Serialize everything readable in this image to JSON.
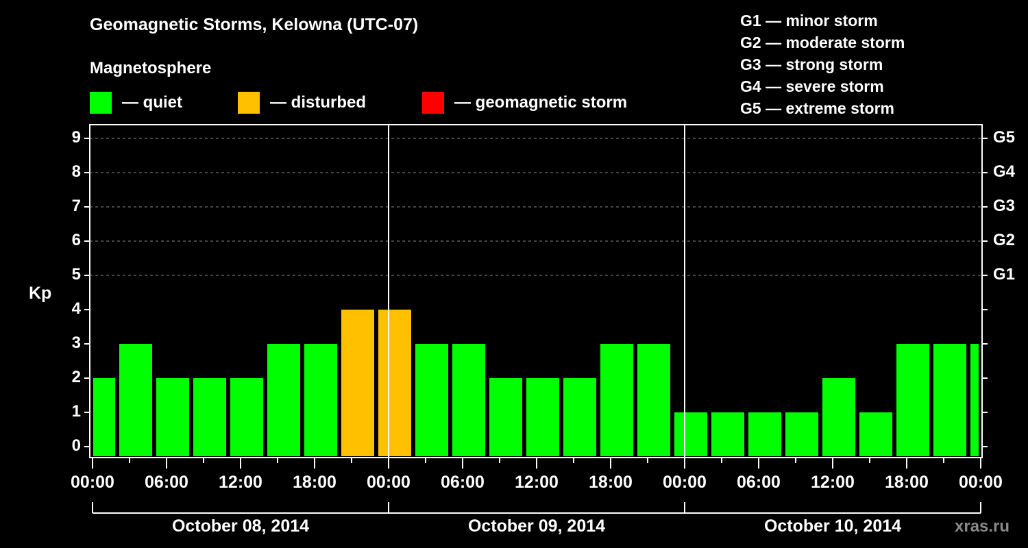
{
  "chart_data": {
    "type": "bar",
    "title": "Geomagnetic Storms, Kelowna (UTC-07)",
    "subtitle": "Magnetosphere",
    "ylabel": "Kp",
    "ylim": [
      0,
      9
    ],
    "yticks": [
      "0",
      "1",
      "2",
      "3",
      "4",
      "5",
      "6",
      "7",
      "8",
      "9"
    ],
    "right_ticks": [
      {
        "kp": 5,
        "label": "G1"
      },
      {
        "kp": 6,
        "label": "G2"
      },
      {
        "kp": 7,
        "label": "G3"
      },
      {
        "kp": 8,
        "label": "G4"
      },
      {
        "kp": 9,
        "label": "G5"
      }
    ],
    "xticks": [
      "00:00",
      "06:00",
      "12:00",
      "18:00",
      "00:00",
      "06:00",
      "12:00",
      "18:00",
      "00:00",
      "06:00",
      "12:00",
      "18:00",
      "00:00"
    ],
    "dates": [
      "October 08, 2014",
      "October 09, 2014",
      "October 10, 2014"
    ],
    "grid": "dashed horizontal lines at Kp 5-9",
    "interval_hours": 3,
    "values": [
      2,
      3,
      2,
      2,
      2,
      3,
      3,
      4,
      4,
      3,
      3,
      2,
      2,
      2,
      3,
      3,
      1,
      1,
      1,
      1,
      2,
      1,
      3,
      3,
      3
    ],
    "status": [
      "quiet",
      "quiet",
      "quiet",
      "quiet",
      "quiet",
      "quiet",
      "quiet",
      "disturbed",
      "disturbed",
      "quiet",
      "quiet",
      "quiet",
      "quiet",
      "quiet",
      "quiet",
      "quiet",
      "quiet",
      "quiet",
      "quiet",
      "quiet",
      "quiet",
      "quiet",
      "quiet",
      "quiet",
      "quiet"
    ]
  },
  "legend": {
    "items": [
      {
        "label": "— quiet",
        "color": "#00ff00"
      },
      {
        "label": "— disturbed",
        "color": "#ffc000"
      },
      {
        "label": "— geomagnetic storm",
        "color": "#ff0000"
      }
    ]
  },
  "g_scale": [
    "G1 — minor storm",
    "G2 — moderate storm",
    "G3 — strong storm",
    "G4 — severe storm",
    "G5 — extreme storm"
  ],
  "watermark": "xras.ru"
}
